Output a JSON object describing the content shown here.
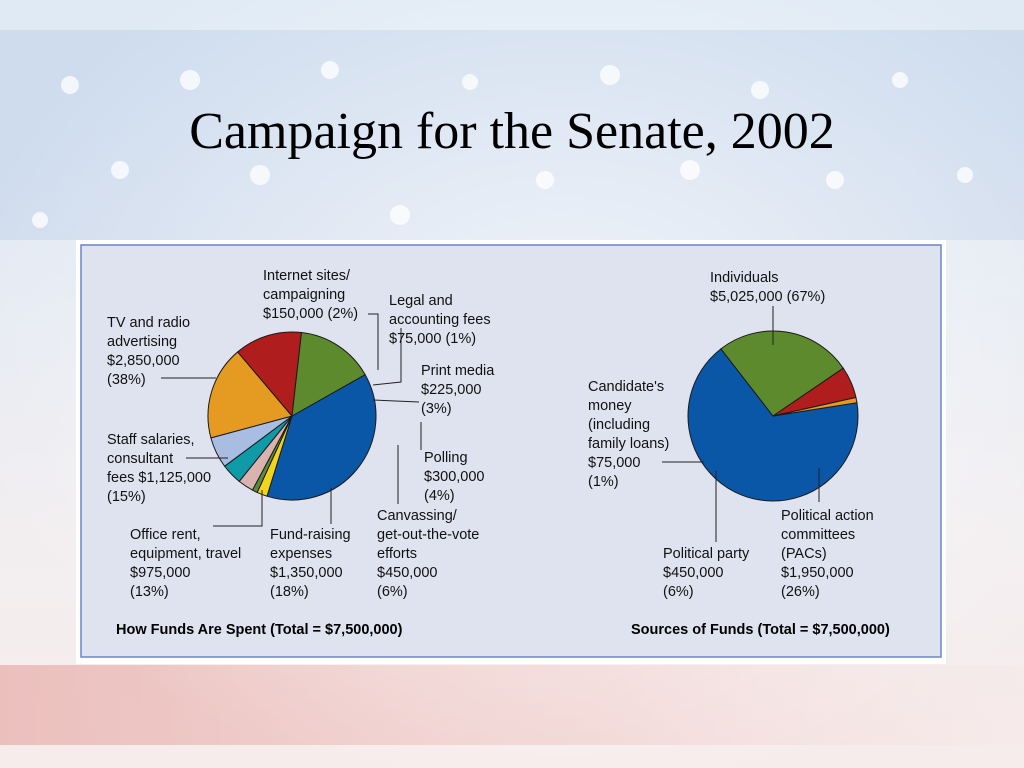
{
  "slide": {
    "title": "Campaign for the Senate, 2002"
  },
  "colors": {
    "panel_bg": "#dfe3ef",
    "panel_border": "#6a86c6",
    "leader": "#222222"
  },
  "chart_data": [
    {
      "type": "pie",
      "title": "How Funds Are Spent (Total = $7,500,000)",
      "slices": [
        {
          "lines": [
            "TV and radio",
            "advertising",
            "$2,850,000",
            "(38%)"
          ],
          "value": 2850000,
          "percent": 38,
          "color": "#0a57a8"
        },
        {
          "lines": [
            "Internet sites/",
            "campaigning",
            "$150,000 (2%)"
          ],
          "value": 150000,
          "percent": 2,
          "color": "#f2d41c"
        },
        {
          "lines": [
            "Legal and",
            "accounting fees",
            "$75,000 (1%)"
          ],
          "value": 75000,
          "percent": 1,
          "color": "#5d8a3a"
        },
        {
          "lines": [
            "Print media",
            "$225,000",
            "(3%)"
          ],
          "value": 225000,
          "percent": 3,
          "color": "#d9b3b0"
        },
        {
          "lines": [
            "Polling",
            "$300,000",
            "(4%)"
          ],
          "value": 300000,
          "percent": 4,
          "color": "#0f9aa8"
        },
        {
          "lines": [
            "Canvassing/",
            "get-out-the-vote",
            "efforts",
            "$450,000",
            "(6%)"
          ],
          "value": 450000,
          "percent": 6,
          "color": "#a9bde3"
        },
        {
          "lines": [
            "Fund-raising",
            "expenses",
            "$1,350,000",
            "(18%)"
          ],
          "value": 1350000,
          "percent": 18,
          "color": "#e59a22"
        },
        {
          "lines": [
            "Office rent,",
            "equipment, travel",
            "$975,000",
            "(13%)"
          ],
          "value": 975000,
          "percent": 13,
          "color": "#b01d1d"
        },
        {
          "lines": [
            "Staff salaries,",
            "consultant",
            "fees $1,125,000",
            "(15%)"
          ],
          "value": 1125000,
          "percent": 15,
          "color": "#5e8a2e"
        }
      ]
    },
    {
      "type": "pie",
      "title": "Sources of Funds (Total = $7,500,000)",
      "slices": [
        {
          "lines": [
            "Individuals",
            "$5,025,000 (67%)"
          ],
          "value": 5025000,
          "percent": 67,
          "color": "#0a57a8"
        },
        {
          "lines": [
            "Political action",
            "committees",
            "(PACs)",
            "$1,950,000",
            "(26%)"
          ],
          "value": 1950000,
          "percent": 26,
          "color": "#5e8a2e"
        },
        {
          "lines": [
            "Political party",
            "$450,000",
            "(6%)"
          ],
          "value": 450000,
          "percent": 6,
          "color": "#b01d1d"
        },
        {
          "lines": [
            "Candidate's",
            "money",
            "(including",
            "family loans)",
            "$75,000",
            "(1%)"
          ],
          "value": 75000,
          "percent": 1,
          "color": "#e59a22"
        }
      ]
    }
  ]
}
